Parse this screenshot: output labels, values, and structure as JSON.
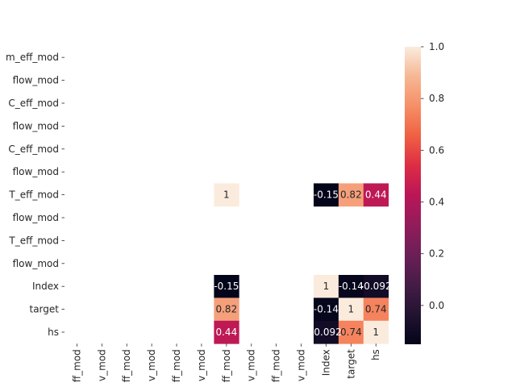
{
  "chart_data": {
    "type": "heatmap",
    "title": "",
    "xlabel": "",
    "ylabel": "",
    "rows": [
      "m_eff_mod",
      "flow_mod",
      "C_eff_mod",
      "flow_mod",
      "C_eff_mod",
      "flow_mod",
      "T_eff_mod",
      "flow_mod",
      "T_eff_mod",
      "flow_mod",
      "Index",
      "target",
      "hs"
    ],
    "columns": [
      "ff_mod",
      "v_mod",
      "ff_mod",
      "v_mod",
      "ff_mod",
      "v_mod",
      "ff_mod",
      "v_mod",
      "ff_mod",
      "v_mod",
      "Index",
      "target",
      "hs"
    ],
    "cells": [
      {
        "row": 6,
        "col": 6,
        "value": 1,
        "label": "1"
      },
      {
        "row": 6,
        "col": 10,
        "value": -0.15,
        "label": "-0.15"
      },
      {
        "row": 6,
        "col": 11,
        "value": 0.82,
        "label": "0.82"
      },
      {
        "row": 6,
        "col": 12,
        "value": 0.44,
        "label": "0.44"
      },
      {
        "row": 10,
        "col": 6,
        "value": -0.15,
        "label": "-0.15"
      },
      {
        "row": 10,
        "col": 10,
        "value": 1,
        "label": "1"
      },
      {
        "row": 10,
        "col": 11,
        "value": -0.14,
        "label": "-0.14"
      },
      {
        "row": 10,
        "col": 12,
        "value": -0.092,
        "label": "-0.092"
      },
      {
        "row": 11,
        "col": 6,
        "value": 0.82,
        "label": "0.82"
      },
      {
        "row": 11,
        "col": 10,
        "value": -0.14,
        "label": "-0.14"
      },
      {
        "row": 11,
        "col": 11,
        "value": 1,
        "label": "1"
      },
      {
        "row": 11,
        "col": 12,
        "value": 0.74,
        "label": "0.74"
      },
      {
        "row": 12,
        "col": 6,
        "value": 0.44,
        "label": "0.44"
      },
      {
        "row": 12,
        "col": 10,
        "value": -0.092,
        "label": "-0.092"
      },
      {
        "row": 12,
        "col": 11,
        "value": 0.74,
        "label": "0.74"
      },
      {
        "row": 12,
        "col": 12,
        "value": 1,
        "label": "1"
      }
    ],
    "vmin": -0.15,
    "vmax": 1,
    "colormap": "rocket",
    "colorbar_ticks": [
      1.0,
      0.8,
      0.6,
      0.4,
      0.2,
      0.0
    ],
    "colorbar_tick_labels": [
      "1.0",
      "0.8",
      "0.6",
      "0.4",
      "0.2",
      "0.0"
    ],
    "missing_cell_color": "#ffffff"
  }
}
